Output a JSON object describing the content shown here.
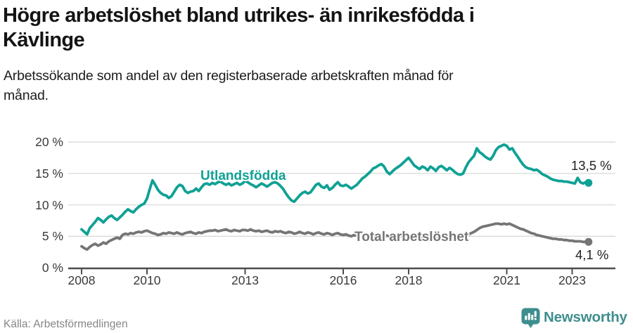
{
  "header": {
    "title_line1": "Högre arbetslöshet bland utrikes- än inrikesfödda i",
    "title_line2": "Kävlinge",
    "subtitle_line1": "Arbetssökande som andel av den registerbaserade arbetskraften månad för",
    "subtitle_line2": "månad."
  },
  "footer": {
    "source": "Källa: Arbetsförmedlingen",
    "brand": "Newsworthy",
    "brand_color": "#3E8E8E"
  },
  "chart_data": {
    "type": "line",
    "title": "Högre arbetslöshet bland utrikes- än inrikesfödda i Kävlinge",
    "subtitle": "Arbetssökande som andel av den registerbaserade arbetskraften månad för månad.",
    "grid": true,
    "ylim": [
      0,
      21.5
    ],
    "x_start_year": 2008,
    "points_per_year": 12,
    "x_end_year_approx": 2023.5,
    "y_ticks": [
      {
        "value": 0,
        "label": "0 %"
      },
      {
        "value": 5,
        "label": "5 %"
      },
      {
        "value": 10,
        "label": "10 %"
      },
      {
        "value": 15,
        "label": "15 %"
      },
      {
        "value": 20,
        "label": "20 %"
      }
    ],
    "x_ticks": [
      {
        "year": 2008,
        "label": "2008"
      },
      {
        "year": 2010,
        "label": "2010"
      },
      {
        "year": 2013,
        "label": "2013"
      },
      {
        "year": 2016,
        "label": "2016"
      },
      {
        "year": 2018,
        "label": "2018"
      },
      {
        "year": 2021,
        "label": "2021"
      },
      {
        "year": 2023,
        "label": "2023"
      }
    ],
    "series": [
      {
        "name": "Utlandsfödda",
        "color": "#10A195",
        "end_label": "13,5 %",
        "end_value": 13.5,
        "values": [
          6.1,
          5.7,
          5.3,
          6.3,
          6.8,
          7.3,
          7.9,
          7.6,
          7.2,
          7.7,
          8.1,
          8.3,
          7.9,
          7.6,
          8.0,
          8.4,
          8.9,
          9.3,
          9.0,
          8.8,
          9.3,
          9.7,
          10.0,
          10.2,
          11.0,
          12.5,
          13.9,
          13.2,
          12.4,
          11.9,
          11.6,
          11.5,
          11.1,
          11.4,
          12.1,
          12.8,
          13.2,
          13.0,
          12.2,
          11.9,
          12.1,
          12.2,
          12.6,
          12.2,
          12.8,
          13.3,
          13.4,
          13.2,
          13.5,
          13.3,
          13.6,
          13.7,
          13.4,
          13.2,
          13.4,
          13.1,
          13.3,
          13.5,
          13.2,
          13.4,
          13.8,
          13.6,
          13.3,
          13.1,
          12.8,
          13.1,
          13.4,
          13.2,
          12.9,
          13.2,
          13.5,
          13.6,
          13.4,
          13.0,
          12.5,
          11.8,
          11.2,
          10.7,
          10.5,
          11.0,
          11.5,
          11.9,
          12.1,
          11.8,
          12.0,
          12.6,
          13.2,
          13.4,
          12.9,
          12.7,
          13.1,
          12.4,
          12.7,
          13.2,
          13.6,
          13.1,
          13.0,
          13.2,
          12.9,
          12.6,
          12.9,
          13.2,
          13.7,
          14.2,
          14.5,
          14.9,
          15.3,
          15.8,
          16.0,
          16.3,
          16.5,
          16.1,
          15.3,
          14.9,
          15.3,
          15.7,
          16.0,
          16.3,
          16.7,
          17.1,
          17.5,
          16.9,
          16.3,
          16.0,
          15.7,
          16.1,
          15.9,
          15.5,
          16.1,
          15.8,
          15.4,
          16.0,
          16.2,
          15.9,
          15.5,
          15.9,
          15.6,
          15.2,
          14.9,
          14.8,
          15.0,
          16.0,
          16.8,
          17.3,
          17.8,
          19.0,
          18.4,
          18.1,
          17.7,
          17.4,
          17.2,
          17.8,
          18.7,
          19.2,
          19.4,
          19.6,
          19.4,
          18.8,
          19.0,
          18.3,
          17.7,
          17.0,
          16.4,
          16.0,
          15.8,
          15.7,
          15.5,
          15.6,
          15.3,
          14.9,
          14.7,
          14.5,
          14.2,
          14.0,
          13.9,
          13.8,
          13.8,
          13.7,
          13.7,
          13.6,
          13.5,
          13.4,
          14.3,
          13.6,
          13.4,
          13.6,
          13.5
        ]
      },
      {
        "name": "Total arbetslöshet",
        "color": "#757575",
        "end_label": "4,1 %",
        "end_value": 4.1,
        "values": [
          3.4,
          3.1,
          2.9,
          3.3,
          3.6,
          3.8,
          3.5,
          3.7,
          4.0,
          3.8,
          4.2,
          4.4,
          4.6,
          4.8,
          4.6,
          5.2,
          5.4,
          5.3,
          5.5,
          5.4,
          5.6,
          5.7,
          5.6,
          5.8,
          5.9,
          5.7,
          5.5,
          5.4,
          5.2,
          5.3,
          5.5,
          5.4,
          5.6,
          5.5,
          5.4,
          5.6,
          5.4,
          5.3,
          5.5,
          5.6,
          5.7,
          5.5,
          5.4,
          5.6,
          5.5,
          5.7,
          5.8,
          5.9,
          5.9,
          6.0,
          5.8,
          5.9,
          6.0,
          6.1,
          5.9,
          5.8,
          6.0,
          5.9,
          5.8,
          6.0,
          6.0,
          5.9,
          6.1,
          5.9,
          5.8,
          5.9,
          5.7,
          5.8,
          5.9,
          5.7,
          5.6,
          5.8,
          5.7,
          5.8,
          5.6,
          5.5,
          5.7,
          5.6,
          5.4,
          5.5,
          5.7,
          5.5,
          5.4,
          5.6,
          5.5,
          5.3,
          5.5,
          5.6,
          5.4,
          5.3,
          5.5,
          5.4,
          5.2,
          5.4,
          5.5,
          5.3,
          5.2,
          5.3,
          5.1,
          5.0,
          5.2,
          5.1,
          4.9,
          5.0,
          5.1,
          5.0,
          4.9,
          5.0,
          5.1,
          5.0,
          4.9,
          5.0,
          5.1,
          5.0,
          4.9,
          4.8,
          4.9,
          5.0,
          4.9,
          4.8,
          4.9,
          4.8,
          4.7,
          4.8,
          4.9,
          4.8,
          4.7,
          4.8,
          4.9,
          4.8,
          4.7,
          4.8,
          4.9,
          4.8,
          4.7,
          4.8,
          4.9,
          5.0,
          4.9,
          5.0,
          5.1,
          5.2,
          5.3,
          5.5,
          5.7,
          6.0,
          6.3,
          6.5,
          6.6,
          6.7,
          6.8,
          6.9,
          7.0,
          7.0,
          6.9,
          7.0,
          6.9,
          7.0,
          6.8,
          6.6,
          6.4,
          6.2,
          6.1,
          5.9,
          5.7,
          5.5,
          5.4,
          5.2,
          5.1,
          5.0,
          4.9,
          4.8,
          4.7,
          4.6,
          4.6,
          4.5,
          4.5,
          4.4,
          4.4,
          4.3,
          4.3,
          4.2,
          4.2,
          4.2,
          4.1,
          4.1,
          4.1
        ]
      }
    ]
  }
}
